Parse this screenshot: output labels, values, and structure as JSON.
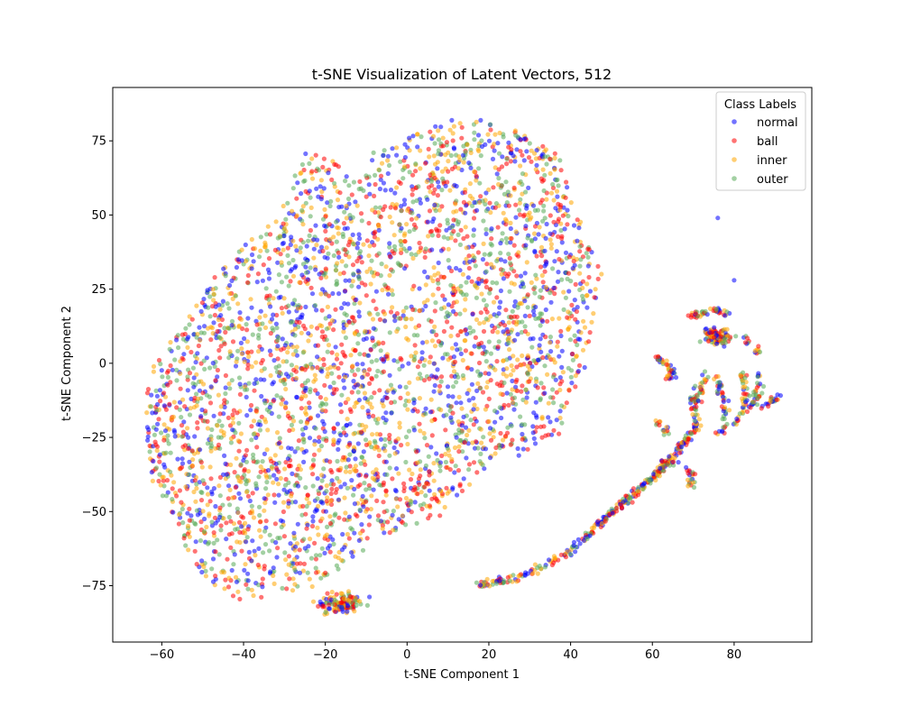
{
  "chart_data": {
    "type": "scatter",
    "title": "t-SNE Visualization of Latent Vectors, 512",
    "xlabel": "t-SNE Component 1",
    "ylabel": "t-SNE Component 2",
    "xlim": [
      -72,
      99
    ],
    "ylim": [
      -94,
      93
    ],
    "xticks": [
      -60,
      -40,
      -20,
      0,
      20,
      40,
      60,
      80
    ],
    "yticks": [
      -75,
      -50,
      -25,
      0,
      25,
      50,
      75
    ],
    "grid": false,
    "legend": {
      "title": "Class Labels",
      "placement": "top-right"
    },
    "series": [
      {
        "name": "normal",
        "color": "#0000ff"
      },
      {
        "name": "ball",
        "color": "#ff0000"
      },
      {
        "name": "inner",
        "color": "#ffa500"
      },
      {
        "name": "outer",
        "color": "#55aa55"
      }
    ],
    "regions": [
      {
        "kind": "main-cloud",
        "outline": [
          [
            -64,
            -4
          ],
          [
            -60,
            4
          ],
          [
            -55,
            12
          ],
          [
            -50,
            25
          ],
          [
            -43,
            36
          ],
          [
            -38,
            42
          ],
          [
            -32,
            50
          ],
          [
            -28,
            60
          ],
          [
            -26,
            72
          ],
          [
            -20,
            70
          ],
          [
            -12,
            62
          ],
          [
            -8,
            72
          ],
          [
            0,
            76
          ],
          [
            10,
            82
          ],
          [
            22,
            82
          ],
          [
            30,
            76
          ],
          [
            37,
            72
          ],
          [
            40,
            55
          ],
          [
            43,
            46
          ],
          [
            48,
            30
          ],
          [
            46,
            18
          ],
          [
            44,
            0
          ],
          [
            40,
            -12
          ],
          [
            37,
            -25
          ],
          [
            32,
            -30
          ],
          [
            20,
            -35
          ],
          [
            12,
            -45
          ],
          [
            8,
            -52
          ],
          [
            0,
            -55
          ],
          [
            -8,
            -60
          ],
          [
            -12,
            -66
          ],
          [
            -18,
            -72
          ],
          [
            -24,
            -76
          ],
          [
            -32,
            -78
          ],
          [
            -40,
            -80
          ],
          [
            -48,
            -76
          ],
          [
            -52,
            -70
          ],
          [
            -56,
            -55
          ],
          [
            -62,
            -42
          ],
          [
            -64,
            -25
          ]
        ],
        "count": 3600
      },
      {
        "kind": "blob",
        "center": [
          -16,
          -81
        ],
        "spread": [
          5,
          3
        ],
        "count": 120
      },
      {
        "kind": "blob",
        "center": [
          76,
          9
        ],
        "spread": [
          3,
          2
        ],
        "count": 120
      },
      {
        "kind": "arc",
        "points": [
          [
            18,
            -75
          ],
          [
            28,
            -72
          ],
          [
            38,
            -65
          ],
          [
            45,
            -57
          ],
          [
            52,
            -48
          ],
          [
            57,
            -42
          ],
          [
            62,
            -36
          ],
          [
            67,
            -28
          ],
          [
            71,
            -21
          ]
        ],
        "count": 320
      },
      {
        "kind": "arc",
        "points": [
          [
            61,
            2
          ],
          [
            63,
            0
          ],
          [
            65,
            -3
          ],
          [
            64,
            -5
          ]
        ],
        "count": 40
      },
      {
        "kind": "arc",
        "points": [
          [
            69,
            16
          ],
          [
            72,
            17
          ],
          [
            76,
            18
          ],
          [
            79,
            17
          ]
        ],
        "count": 40
      },
      {
        "kind": "arc",
        "points": [
          [
            70,
            -8
          ],
          [
            70,
            -14
          ],
          [
            71,
            -20
          ]
        ],
        "count": 30
      },
      {
        "kind": "arc",
        "points": [
          [
            75,
            -3
          ],
          [
            77,
            -10
          ],
          [
            78,
            -16
          ],
          [
            78,
            -22
          ],
          [
            76,
            -24
          ]
        ],
        "count": 45
      },
      {
        "kind": "arc",
        "points": [
          [
            82,
            -3
          ],
          [
            83,
            -10
          ],
          [
            82,
            -16
          ],
          [
            80,
            -21
          ]
        ],
        "count": 40
      },
      {
        "kind": "arc",
        "points": [
          [
            86,
            -2
          ],
          [
            86,
            -8
          ],
          [
            85,
            -13
          ],
          [
            83,
            -14
          ]
        ],
        "count": 35
      },
      {
        "kind": "arc",
        "points": [
          [
            91,
            -11
          ],
          [
            89,
            -13
          ],
          [
            87,
            -15
          ]
        ],
        "count": 20
      },
      {
        "kind": "arc",
        "points": [
          [
            73,
            -3
          ],
          [
            72,
            -9
          ],
          [
            71,
            -14
          ]
        ],
        "count": 25
      },
      {
        "kind": "arc",
        "points": [
          [
            62,
            -20
          ],
          [
            63,
            -24
          ]
        ],
        "count": 15
      },
      {
        "kind": "arc",
        "points": [
          [
            68,
            -35
          ],
          [
            70,
            -38
          ],
          [
            69,
            -42
          ]
        ],
        "count": 20
      },
      {
        "kind": "arc",
        "points": [
          [
            82,
            9
          ],
          [
            84,
            6
          ],
          [
            86,
            4
          ]
        ],
        "count": 15
      },
      {
        "kind": "arc",
        "points": [
          [
            59,
            -40
          ],
          [
            63,
            -34
          ],
          [
            66,
            -33
          ]
        ],
        "count": 20
      }
    ],
    "isolated_points": [
      {
        "x": 76,
        "y": 49,
        "series": "normal"
      },
      {
        "x": 80,
        "y": 28,
        "series": "normal"
      },
      {
        "x": 17,
        "y": -74,
        "series": "outer"
      }
    ]
  }
}
